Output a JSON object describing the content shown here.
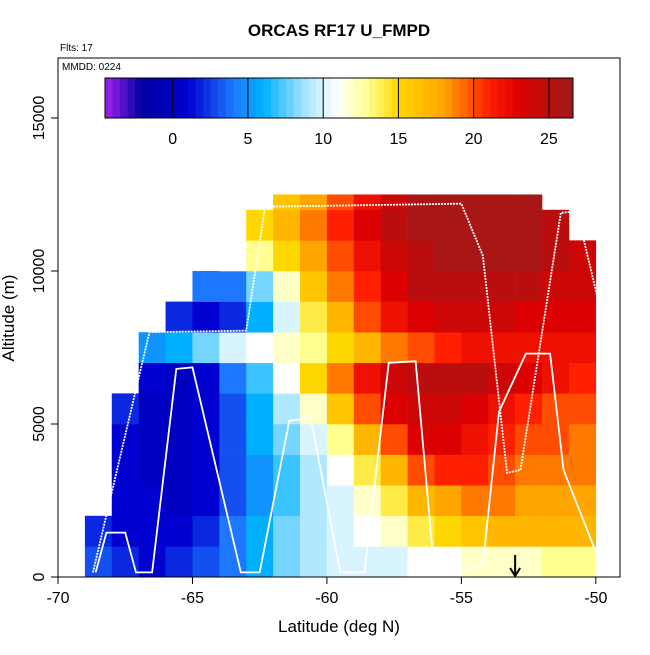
{
  "chart_data": {
    "type": "heatmap",
    "title": "ORCAS RF17 U_FMPD",
    "flights_label": "Flts: 17",
    "date_label": "MMDD: 0224",
    "x_label": "Latitude (deg N)",
    "y_label": "Altitude (m)",
    "xlim": [
      -70,
      -49.1
    ],
    "ylim": [
      0,
      16960
    ],
    "xticks": [
      -70,
      -65,
      -60,
      -55,
      -50
    ],
    "yticks": [
      0,
      5000,
      10000,
      15000
    ],
    "x_bins": [
      -69,
      -68,
      -67,
      -66,
      -65,
      -64,
      -63,
      -62,
      -61,
      -60,
      -59,
      -58,
      -57,
      -56,
      -55,
      -54,
      -53,
      -52,
      -51,
      -50
    ],
    "y_bins": [
      0,
      1000,
      2000,
      3000,
      4000,
      5000,
      6000,
      7000,
      8000,
      9000,
      10000,
      11000,
      12000,
      12500
    ],
    "z": [
      [
        3,
        2,
        1,
        2,
        3,
        4,
        6,
        8,
        9,
        10,
        10,
        10,
        11,
        11,
        12,
        12,
        12,
        13,
        13
      ],
      [
        2,
        1,
        1,
        1,
        2,
        4,
        6,
        8,
        9,
        10,
        11,
        12,
        14,
        15,
        16,
        17,
        17,
        17,
        17
      ],
      [
        null,
        1,
        1,
        0,
        1,
        3,
        5,
        7,
        9,
        10,
        12,
        14,
        17,
        18,
        19,
        19,
        18,
        18,
        18
      ],
      [
        null,
        1,
        0,
        0,
        1,
        3,
        5,
        7,
        9,
        11,
        14,
        17,
        20,
        21,
        21,
        20,
        19,
        19,
        19
      ],
      [
        null,
        1,
        0,
        0,
        1,
        3,
        6,
        8,
        10,
        13,
        17,
        20,
        23,
        23,
        22,
        21,
        20,
        20,
        19
      ],
      [
        null,
        2,
        0,
        0,
        1,
        3,
        6,
        9,
        12,
        16,
        20,
        23,
        24,
        24,
        23,
        22,
        21,
        20,
        20
      ],
      [
        null,
        null,
        1,
        0,
        1,
        4,
        7,
        11,
        15,
        19,
        22,
        24,
        25,
        25,
        25,
        24,
        23,
        22,
        21
      ],
      [
        null,
        null,
        5,
        6,
        8,
        10,
        11,
        12,
        13,
        15,
        17,
        19,
        20,
        21,
        22,
        22,
        22,
        22,
        22
      ],
      [
        null,
        null,
        null,
        2,
        1,
        2,
        6,
        10,
        14,
        17,
        20,
        22,
        23,
        24,
        24,
        24,
        23,
        23,
        23
      ],
      [
        null,
        null,
        null,
        null,
        4,
        4,
        8,
        12,
        16,
        19,
        21,
        23,
        25,
        25,
        25,
        25,
        25,
        24,
        24
      ],
      [
        null,
        null,
        null,
        null,
        null,
        11,
        13,
        15,
        18,
        20,
        22,
        24,
        25,
        26,
        26,
        26,
        26,
        25,
        24
      ],
      [
        null,
        null,
        null,
        null,
        null,
        null,
        15,
        17,
        19,
        21,
        23,
        25,
        26,
        26,
        26,
        26,
        26,
        25,
        null
      ],
      [
        null,
        null,
        null,
        null,
        null,
        null,
        null,
        16,
        18,
        20,
        22,
        24,
        26,
        26,
        26,
        26,
        26,
        null,
        null
      ]
    ],
    "colorbar": {
      "lim": [
        -4.5,
        26.6
      ],
      "ticks": [
        0,
        5,
        10,
        15,
        20,
        25
      ]
    },
    "colormap": [
      {
        "value": -4.5,
        "color": "#a020f0"
      },
      {
        "value": -2,
        "color": "#0000a0"
      },
      {
        "value": 1,
        "color": "#0000d0"
      },
      {
        "value": 4,
        "color": "#1e78ff"
      },
      {
        "value": 6,
        "color": "#00b0ff"
      },
      {
        "value": 9,
        "color": "#b0e8ff"
      },
      {
        "value": 11,
        "color": "#ffffff"
      },
      {
        "value": 13,
        "color": "#ffff90"
      },
      {
        "value": 15,
        "color": "#ffd700"
      },
      {
        "value": 18,
        "color": "#ffa500"
      },
      {
        "value": 21,
        "color": "#ff2000"
      },
      {
        "value": 23,
        "color": "#dd0000"
      },
      {
        "value": 26.6,
        "color": "#9e1a1a"
      }
    ],
    "tracks": [
      {
        "color": "#ffffff",
        "x": [
          -68.6,
          -68.2,
          -67.5,
          -67.1,
          -66.5,
          -65.6,
          -65.0,
          -63.2,
          -62.5,
          -61.4,
          -60.6,
          -59.5,
          -58.6,
          -57.7,
          -56.7,
          -56.0,
          -54.8,
          -54.2,
          -53.6,
          -52.6,
          -51.7,
          -51.2,
          -49.9
        ],
        "y": [
          150,
          1450,
          1450,
          150,
          150,
          6800,
          6850,
          150,
          150,
          5100,
          5200,
          150,
          150,
          7000,
          7050,
          100,
          200,
          400,
          5400,
          7300,
          7300,
          3500,
          600
        ]
      },
      {
        "color": "#ffffff",
        "x": [
          -68.7,
          -66.6,
          -63.0,
          -62.3,
          -55.0,
          -54.2,
          -53.3,
          -52.8,
          -51.3,
          -50.7,
          -49.9,
          -49.9
        ],
        "y": [
          150,
          8000,
          8050,
          12100,
          12200,
          10500,
          3400,
          3500,
          11900,
          11950,
          9000,
          1000
        ]
      }
    ],
    "arrow_x": -53
  }
}
